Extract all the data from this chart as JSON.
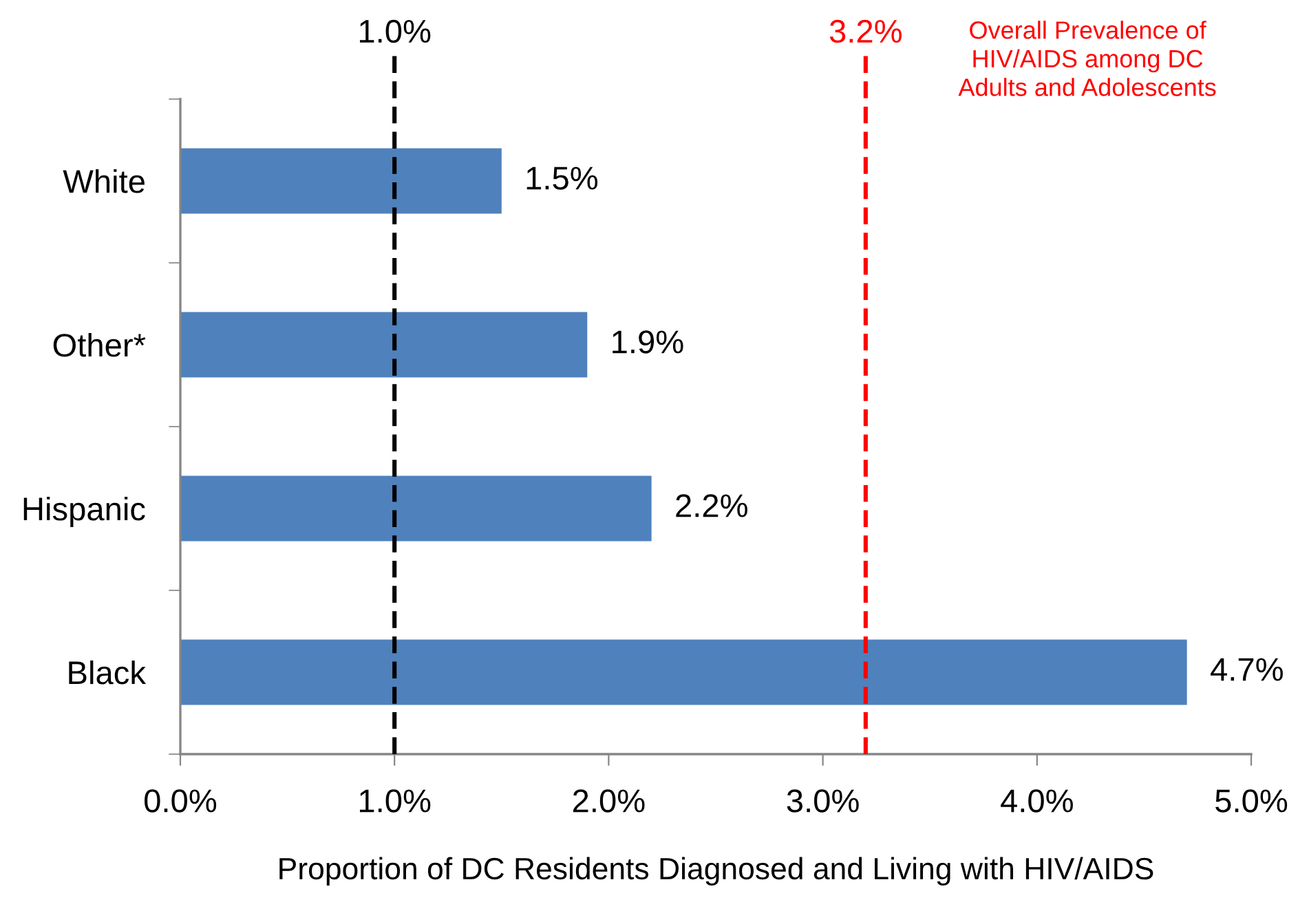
{
  "chart_data": {
    "type": "bar",
    "orientation": "horizontal",
    "xlabel": "Proportion of DC Residents Diagnosed and Living with HIV/AIDS",
    "categories": [
      "White",
      "Other*",
      "Hispanic",
      "Black"
    ],
    "values": [
      1.5,
      1.9,
      2.2,
      4.7
    ],
    "color": "#4f81bd",
    "value_labels": [
      "1.5%",
      "1.9%",
      "2.2%",
      "4.7%"
    ],
    "xlim": [
      0,
      5
    ],
    "xticks": [
      {
        "value": 0,
        "label": "0.0%"
      },
      {
        "value": 1,
        "label": "1.0%"
      },
      {
        "value": 2,
        "label": "2.0%"
      },
      {
        "value": 3,
        "label": "3.0%"
      },
      {
        "value": 4,
        "label": "4.0%"
      },
      {
        "value": 5,
        "label": "5.0%"
      }
    ],
    "grid": false,
    "ref_lines": [
      {
        "axis": "x",
        "value": 1.0,
        "label": "1.0%",
        "color": "#000000",
        "line_style": "dashed"
      },
      {
        "axis": "x",
        "value": 3.2,
        "label": "3.2%",
        "color": "#ff0000",
        "line_style": "dashed"
      }
    ],
    "annotations": [
      "Overall Prevalence of\nHIV/AIDS among DC\nAdults and Adolescents"
    ]
  }
}
